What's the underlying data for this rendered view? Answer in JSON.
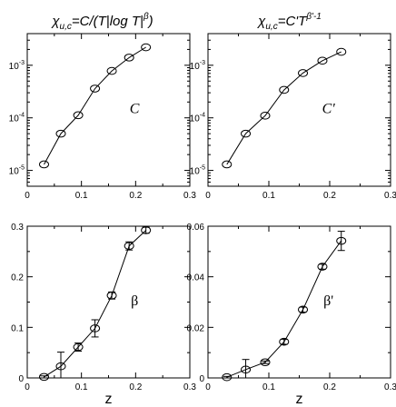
{
  "titles": {
    "left": {
      "base": "χ",
      "sub": "u,c",
      "expr": "=C/(T",
      "bar": "|",
      "log": "log T",
      "bar2": "|",
      "sup": "β",
      "close": ")"
    },
    "right": {
      "base": "χ",
      "sub": "u,c",
      "expr": "=C'T",
      "sup": "β'-1"
    }
  },
  "chart_data": [
    {
      "id": "top-left",
      "type": "line",
      "yscale": "log",
      "xlim": [
        0,
        0.3
      ],
      "ylim": [
        5e-06,
        0.004
      ],
      "xticks": [
        "0",
        "0.1",
        "0.2",
        "0.3"
      ],
      "yticks": [
        {
          "v": 1e-05,
          "base": "10",
          "exp": "-5"
        },
        {
          "v": 0.0001,
          "base": "10",
          "exp": "-4"
        },
        {
          "v": 0.001,
          "base": "10",
          "exp": "-3"
        }
      ],
      "annotation": "C",
      "annotation_italic": true,
      "series": [
        {
          "x": [
            0.031,
            0.062,
            0.094,
            0.125,
            0.156,
            0.188,
            0.219
          ],
          "y": [
            1.3e-05,
            5e-05,
            0.000112,
            0.00036,
            0.00078,
            0.0014,
            0.0022
          ],
          "err": [
            0,
            0,
            0,
            0,
            0,
            0,
            0
          ]
        }
      ]
    },
    {
      "id": "top-right",
      "type": "line",
      "yscale": "log",
      "xlim": [
        0,
        0.3
      ],
      "ylim": [
        5e-06,
        0.004
      ],
      "xticks": [
        "0",
        "0.1",
        "0.2",
        "0.3"
      ],
      "yticks": [
        {
          "v": 1e-05,
          "base": "10",
          "exp": "-5"
        },
        {
          "v": 0.0001,
          "base": "10",
          "exp": "-4"
        },
        {
          "v": 0.001,
          "base": "10",
          "exp": "-3"
        }
      ],
      "annotation": "C'",
      "annotation_italic": true,
      "series": [
        {
          "x": [
            0.031,
            0.062,
            0.094,
            0.125,
            0.156,
            0.188,
            0.219
          ],
          "y": [
            1.3e-05,
            5e-05,
            0.00011,
            0.00034,
            0.00071,
            0.00122,
            0.0018
          ],
          "err": [
            0,
            0,
            0,
            0,
            0,
            0,
            0
          ]
        }
      ]
    },
    {
      "id": "bottom-left",
      "type": "line",
      "yscale": "linear",
      "xlim": [
        0,
        0.3
      ],
      "ylim": [
        0,
        0.3
      ],
      "xticks": [
        "0",
        "0.1",
        "0.2",
        "0.3"
      ],
      "yticks": [
        {
          "v": 0,
          "label": "0"
        },
        {
          "v": 0.1,
          "label": "0.1"
        },
        {
          "v": 0.2,
          "label": "0.2"
        },
        {
          "v": 0.3,
          "label": "0.3"
        }
      ],
      "annotation": "β",
      "annotation_italic": false,
      "xlabel": "z",
      "series": [
        {
          "x": [
            0.031,
            0.062,
            0.094,
            0.125,
            0.156,
            0.188,
            0.219
          ],
          "y": [
            0.002,
            0.023,
            0.061,
            0.098,
            0.163,
            0.261,
            0.292
          ],
          "err": [
            0.002,
            0.028,
            0.008,
            0.017,
            0.007,
            0.008,
            0.006
          ]
        }
      ]
    },
    {
      "id": "bottom-right",
      "type": "line",
      "yscale": "linear",
      "xlim": [
        0,
        0.3
      ],
      "ylim": [
        0,
        0.06
      ],
      "xticks": [
        "0",
        "0.1",
        "0.2",
        "0.3"
      ],
      "yticks": [
        {
          "v": 0,
          "label": "0"
        },
        {
          "v": 0.02,
          "label": "0.02"
        },
        {
          "v": 0.04,
          "label": "0.04"
        },
        {
          "v": 0.06,
          "label": "0.06"
        }
      ],
      "annotation": "β'",
      "annotation_italic": false,
      "xlabel": "z",
      "series": [
        {
          "x": [
            0.031,
            0.062,
            0.094,
            0.125,
            0.156,
            0.188,
            0.219
          ],
          "y": [
            0.0003,
            0.0033,
            0.0062,
            0.0143,
            0.027,
            0.044,
            0.0542
          ],
          "err": [
            0.0003,
            0.004,
            0.0005,
            0.001,
            0.001,
            0.001,
            0.0038
          ]
        }
      ]
    }
  ]
}
